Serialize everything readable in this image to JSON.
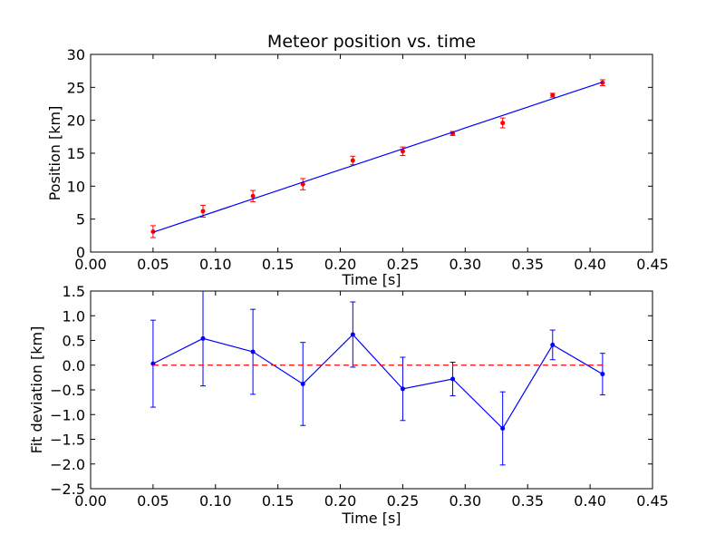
{
  "chart_data": [
    {
      "type": "scatter",
      "title": "Meteor position vs. time",
      "xlabel": "Time [s]",
      "ylabel": "Position [km]",
      "xlim": [
        0.0,
        0.45
      ],
      "ylim": [
        0,
        30
      ],
      "x_ticks": [
        "0.00",
        "0.05",
        "0.10",
        "0.15",
        "0.20",
        "0.25",
        "0.30",
        "0.35",
        "0.40",
        "0.45"
      ],
      "y_ticks": [
        "0",
        "5",
        "10",
        "15",
        "20",
        "25",
        "30"
      ],
      "grid": false,
      "series": [
        {
          "kind": "errorbar-points",
          "color": "#ff0000",
          "x": [
            0.05,
            0.09,
            0.13,
            0.17,
            0.21,
            0.25,
            0.29,
            0.33,
            0.37,
            0.41
          ],
          "y": [
            3.1,
            6.2,
            8.5,
            10.3,
            13.9,
            15.3,
            18.0,
            19.6,
            23.8,
            25.7
          ],
          "yerr": [
            0.9,
            0.9,
            0.85,
            0.85,
            0.65,
            0.65,
            0.3,
            0.75,
            0.3,
            0.45
          ]
        },
        {
          "kind": "fit-line",
          "color": "#0000ff",
          "x": [
            0.05,
            0.41
          ],
          "y": [
            3.0,
            25.8
          ]
        }
      ]
    },
    {
      "type": "line",
      "title": "",
      "xlabel": "Time [s]",
      "ylabel": "Fit deviation [km]",
      "xlim": [
        0.0,
        0.45
      ],
      "ylim": [
        -2.5,
        1.5
      ],
      "x_ticks": [
        "0.00",
        "0.05",
        "0.10",
        "0.15",
        "0.20",
        "0.25",
        "0.30",
        "0.35",
        "0.40",
        "0.45"
      ],
      "y_ticks": [
        "−2.5",
        "−2.0",
        "−1.5",
        "−1.0",
        "−0.5",
        "0.0",
        "0.5",
        "1.0",
        "1.5"
      ],
      "grid": false,
      "series": [
        {
          "kind": "errorbar-line",
          "color": "#0000ff",
          "x": [
            0.05,
            0.09,
            0.13,
            0.17,
            0.21,
            0.25,
            0.29,
            0.33,
            0.37,
            0.41
          ],
          "y": [
            0.03,
            0.54,
            0.27,
            -0.38,
            0.62,
            -0.48,
            -0.28,
            -1.28,
            0.41,
            -0.18
          ],
          "yerr": [
            0.88,
            0.96,
            0.86,
            0.84,
            0.66,
            0.64,
            0.34,
            0.74,
            0.3,
            0.42
          ]
        },
        {
          "kind": "reference-dashed",
          "color": "#ff0000",
          "x": [
            0.05,
            0.41
          ],
          "y": [
            0.0,
            0.0
          ]
        }
      ]
    }
  ]
}
